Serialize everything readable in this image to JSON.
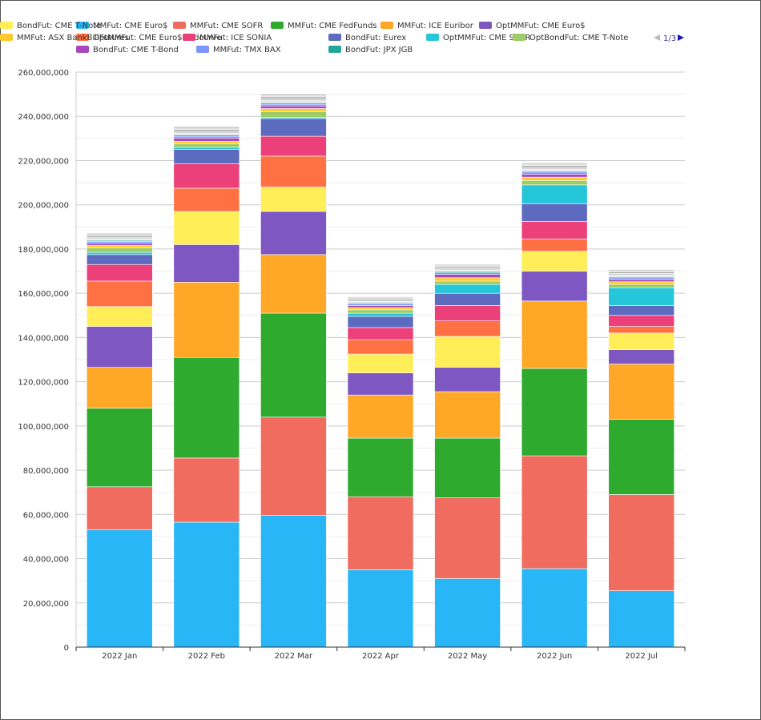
{
  "legend": {
    "pager_text": "1/3",
    "prev_icon": "triangle-left-icon",
    "next_icon": "triangle-right-icon"
  },
  "chart_data": {
    "type": "bar",
    "stacked": true,
    "title": "",
    "xlabel": "",
    "ylabel": "",
    "ylim": [
      0,
      260000000
    ],
    "yticks": [
      "0",
      "20,000,000",
      "40,000,000",
      "60,000,000",
      "80,000,000",
      "100,000,000",
      "120,000,000",
      "140,000,000",
      "160,000,000",
      "180,000,000",
      "200,000,000",
      "220,000,000",
      "240,000,000",
      "260,000,000"
    ],
    "grid": true,
    "legend_position": "top",
    "categories": [
      "2022 Jan",
      "2022 Feb",
      "2022 Mar",
      "2022 Apr",
      "2022 May",
      "2022 Jun",
      "2022 Jul"
    ],
    "series": [
      {
        "name": "MMFut: CME Euro$",
        "color": "#29b6f6",
        "values": [
          53000000,
          56500000,
          59500000,
          35000000,
          31000000,
          35500000,
          25500000
        ]
      },
      {
        "name": "MMFut: CME SOFR",
        "color": "#ef6c5f",
        "values": [
          19500000,
          29000000,
          44500000,
          33000000,
          36500000,
          51000000,
          43500000
        ]
      },
      {
        "name": "MMFut: CME FedFunds",
        "color": "#2eaa2e",
        "values": [
          35500000,
          45500000,
          47000000,
          26500000,
          27000000,
          39500000,
          34000000
        ]
      },
      {
        "name": "MMFut: ICE Euribor",
        "color": "#ffa726",
        "values": [
          18500000,
          34000000,
          26500000,
          19500000,
          21000000,
          30500000,
          25000000
        ]
      },
      {
        "name": "OptMMFut: CME Euro$",
        "color": "#7e57c2",
        "values": [
          18500000,
          17000000,
          19500000,
          10000000,
          11000000,
          13500000,
          6500000
        ]
      },
      {
        "name": "BondFut: CME T-Note",
        "color": "#ffee58",
        "values": [
          9000000,
          15000000,
          11000000,
          8500000,
          14000000,
          9000000,
          7500000
        ]
      },
      {
        "name": "OptMMFut: CME Euro$ Midcurve",
        "color": "#ff7043",
        "values": [
          11500000,
          10500000,
          14000000,
          6500000,
          7000000,
          5500000,
          3000000
        ]
      },
      {
        "name": "MMFut: ICE SONIA",
        "color": "#ec407a",
        "values": [
          7500000,
          11000000,
          9000000,
          5500000,
          7000000,
          8000000,
          5000000
        ]
      },
      {
        "name": "BondFut: Eurex",
        "color": "#5c6bc0",
        "values": [
          4500000,
          6500000,
          8000000,
          5000000,
          5500000,
          8000000,
          4500000
        ]
      },
      {
        "name": "OptMMFut: CME SOFR",
        "color": "#26c6da",
        "values": [
          1000000,
          1000000,
          500000,
          1500000,
          4000000,
          8500000,
          8000000
        ]
      },
      {
        "name": "OptBondFut: CME T-Note",
        "color": "#9ccc65",
        "values": [
          2000000,
          1500000,
          2500000,
          1500000,
          1500000,
          2000000,
          1500000
        ]
      },
      {
        "name": "MMFut: ASX BankBillFutures",
        "color": "#ffca28",
        "values": [
          1200000,
          1200000,
          1500000,
          1000000,
          1500000,
          1500000,
          1200000
        ]
      },
      {
        "name": "BondFut: CME T-Bond",
        "color": "#ab47bc",
        "values": [
          1000000,
          1500000,
          1200000,
          900000,
          1500000,
          1300000,
          1000000
        ]
      },
      {
        "name": "MMFut: TMX BAX",
        "color": "#7b96ff",
        "values": [
          700000,
          800000,
          800000,
          700000,
          700000,
          1000000,
          800000
        ]
      },
      {
        "name": "BondFut: JPX JGB",
        "color": "#26a69a",
        "values": [
          500000,
          600000,
          600000,
          500000,
          600000,
          500000,
          500000
        ]
      },
      {
        "name": "",
        "color": "#e8e8e8",
        "values": [
          800000,
          900000,
          1000000,
          700000,
          800000,
          900000,
          800000
        ]
      },
      {
        "name": "",
        "color": "#c5c5c5",
        "values": [
          700000,
          800000,
          800000,
          600000,
          700000,
          800000,
          700000
        ]
      },
      {
        "name": "",
        "color": "#a9a9a9",
        "values": [
          700000,
          800000,
          900000,
          600000,
          700000,
          800000,
          700000
        ]
      },
      {
        "name": "",
        "color": "#d8d8d8",
        "values": [
          500000,
          600000,
          600000,
          500000,
          500000,
          600000,
          500000
        ]
      },
      {
        "name": "",
        "color": "#b0b0b0",
        "values": [
          500000,
          600000,
          600000,
          400000,
          500000,
          500000,
          500000
        ]
      }
    ]
  }
}
